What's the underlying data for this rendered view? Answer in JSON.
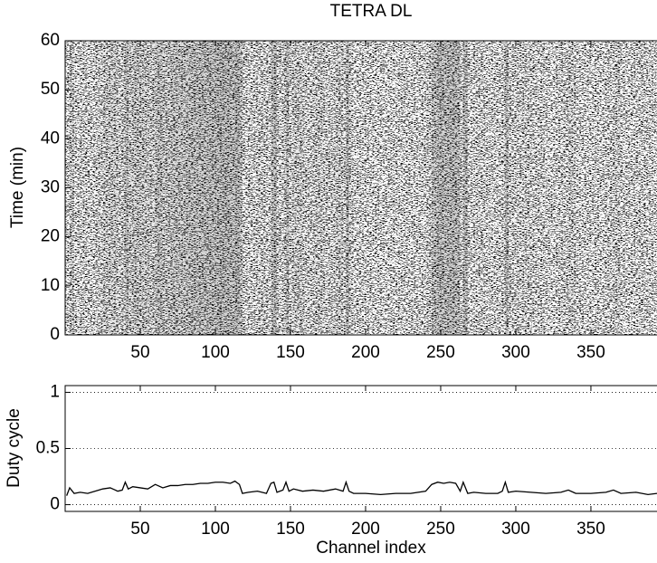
{
  "chart_data": [
    {
      "type": "raster",
      "title": "TETRA DL",
      "ylabel": "Time (min)",
      "xlim": [
        0,
        394
      ],
      "ylim": [
        0,
        60
      ],
      "xticks": [
        50,
        100,
        150,
        200,
        250,
        300,
        350
      ],
      "yticks": [
        0,
        10,
        20,
        30,
        40,
        50,
        60
      ]
    },
    {
      "type": "line",
      "xlabel": "Channel index",
      "ylabel": "Duty cycle",
      "color": "#000000",
      "x": [
        1,
        3,
        6,
        10,
        15,
        20,
        25,
        30,
        35,
        38,
        40,
        42,
        45,
        50,
        55,
        60,
        65,
        70,
        75,
        80,
        85,
        90,
        95,
        100,
        105,
        110,
        113,
        116,
        118,
        122,
        128,
        134,
        137,
        139,
        141,
        145,
        147,
        149,
        152,
        158,
        165,
        172,
        180,
        185,
        187,
        189,
        192,
        200,
        210,
        220,
        230,
        240,
        244,
        248,
        252,
        256,
        260,
        263,
        265,
        268,
        272,
        280,
        288,
        291,
        293,
        295,
        300,
        310,
        320,
        330,
        335,
        340,
        350,
        360,
        365,
        370,
        380,
        388,
        394
      ],
      "values": [
        0.08,
        0.15,
        0.1,
        0.11,
        0.1,
        0.12,
        0.14,
        0.15,
        0.12,
        0.13,
        0.2,
        0.14,
        0.16,
        0.15,
        0.14,
        0.18,
        0.15,
        0.17,
        0.17,
        0.18,
        0.18,
        0.19,
        0.19,
        0.2,
        0.2,
        0.19,
        0.21,
        0.18,
        0.1,
        0.11,
        0.12,
        0.1,
        0.19,
        0.2,
        0.11,
        0.13,
        0.2,
        0.12,
        0.14,
        0.12,
        0.13,
        0.12,
        0.14,
        0.12,
        0.2,
        0.12,
        0.1,
        0.1,
        0.09,
        0.1,
        0.1,
        0.12,
        0.18,
        0.2,
        0.19,
        0.2,
        0.19,
        0.12,
        0.2,
        0.1,
        0.11,
        0.1,
        0.1,
        0.12,
        0.2,
        0.11,
        0.12,
        0.11,
        0.1,
        0.11,
        0.13,
        0.1,
        0.1,
        0.11,
        0.13,
        0.1,
        0.11,
        0.09,
        0.1
      ],
      "xlim": [
        0,
        394
      ],
      "ylim": [
        -0.06,
        1.06
      ],
      "xticks": [
        50,
        100,
        150,
        200,
        250,
        300,
        350
      ],
      "yticks": [
        0,
        0.5,
        1
      ],
      "grid": true
    }
  ]
}
